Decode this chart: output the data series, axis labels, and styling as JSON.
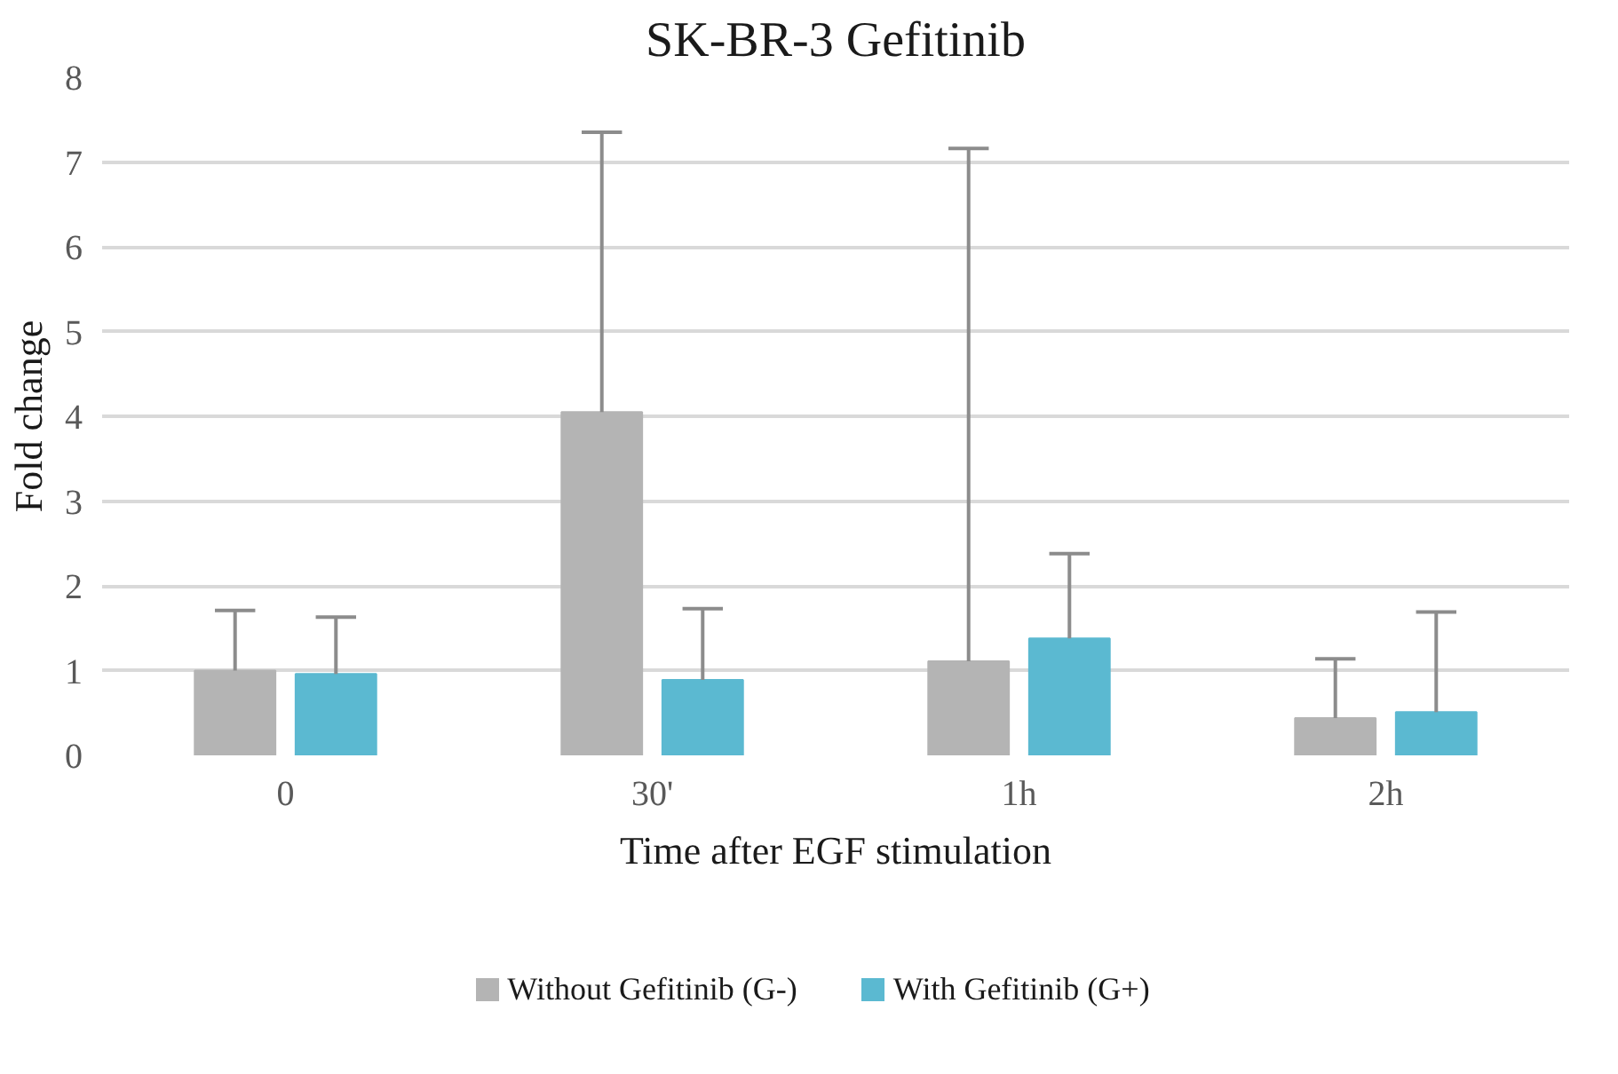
{
  "chart_data": {
    "type": "bar",
    "title": "SK-BR-3 Gefitinib",
    "xlabel": "Time after EGF stimulation",
    "ylabel": "Fold change",
    "categories": [
      "0",
      "30'",
      "1h",
      "2h"
    ],
    "series": [
      {
        "name": "Without Gefitinib (G-)",
        "color": "#b4b4b4",
        "values": [
          1.0,
          4.05,
          1.11,
          0.44
        ],
        "errors": [
          [
            1.0,
            1.71
          ],
          [
            4.05,
            7.35
          ],
          [
            1.11,
            7.16
          ],
          [
            0.44,
            1.14
          ]
        ]
      },
      {
        "name": "With Gefitinib (G+)",
        "color": "#5bb9d1",
        "values": [
          0.96,
          0.89,
          1.38,
          0.51
        ],
        "errors": [
          [
            0.96,
            1.63
          ],
          [
            0.89,
            1.73
          ],
          [
            1.38,
            2.38
          ],
          [
            0.51,
            1.69
          ]
        ]
      }
    ],
    "ylim": [
      0,
      8
    ],
    "yticks": [
      0,
      1,
      2,
      3,
      4,
      5,
      6,
      7,
      8
    ],
    "grid": "y",
    "legend": "bottom"
  }
}
